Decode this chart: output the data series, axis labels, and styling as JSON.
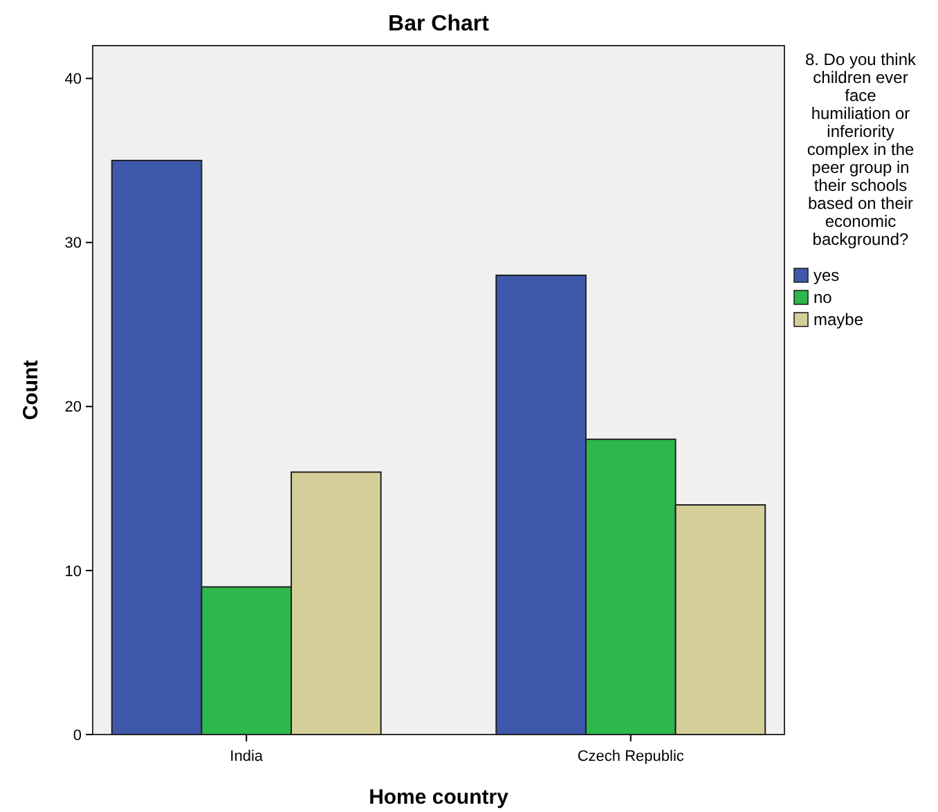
{
  "chart_data": {
    "type": "bar",
    "title": "Bar Chart",
    "xlabel": "Home country",
    "ylabel": "Count",
    "legend_title": "8. Do you think children ever face humiliation or inferiority complex in the peer group in their schools based on their economic background?",
    "categories": [
      "India",
      "Czech Republic"
    ],
    "series": [
      {
        "name": "yes",
        "color": "#3e58ac",
        "values": [
          35,
          28
        ]
      },
      {
        "name": "no",
        "color": "#2db84b",
        "values": [
          9,
          18
        ]
      },
      {
        "name": "maybe",
        "color": "#d4ce98",
        "values": [
          16,
          14
        ]
      }
    ],
    "ylim": [
      0,
      42
    ],
    "yticks": [
      0,
      10,
      20,
      30,
      40
    ],
    "grid": false,
    "legend": "right"
  }
}
